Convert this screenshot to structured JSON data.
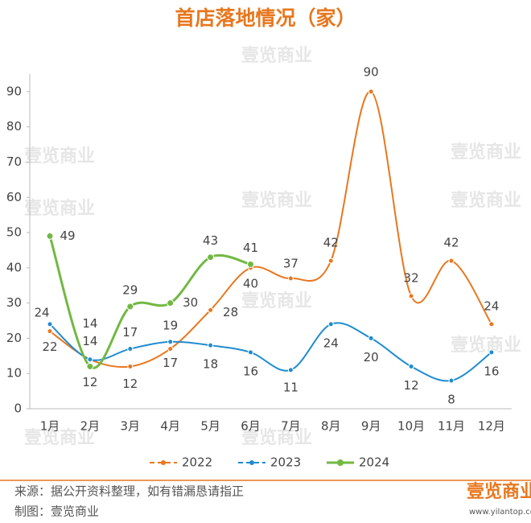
{
  "chart_data": {
    "type": "line",
    "title": "首店落地情况（家）",
    "categories": [
      "1月",
      "2月",
      "3月",
      "4月",
      "5月",
      "6月",
      "7月",
      "8月",
      "9月",
      "10月",
      "11月",
      "12月"
    ],
    "series": [
      {
        "name": "2022",
        "color": "#e8771e",
        "values": [
          22,
          14,
          12,
          17,
          28,
          40,
          37,
          42,
          90,
          32,
          42,
          24
        ]
      },
      {
        "name": "2023",
        "color": "#1f8ccf",
        "values": [
          24,
          14,
          17,
          19,
          18,
          16,
          11,
          24,
          20,
          12,
          8,
          16
        ]
      },
      {
        "name": "2024",
        "color": "#72b843",
        "values": [
          49,
          12,
          29,
          30,
          43,
          41,
          null,
          null,
          null,
          null,
          null,
          null
        ]
      }
    ],
    "ylim": [
      0,
      95
    ],
    "yticks": [
      0,
      10,
      20,
      30,
      40,
      50,
      60,
      70,
      80,
      90
    ],
    "grid": false,
    "legend": "bottom"
  },
  "footer": {
    "source": "来源：据公开资料整理，如有错漏恳请指正",
    "maker": "制图：壹览商业",
    "logo": "壹览商业",
    "site": "www.yilantop.com"
  },
  "watermark": "壹览商业"
}
